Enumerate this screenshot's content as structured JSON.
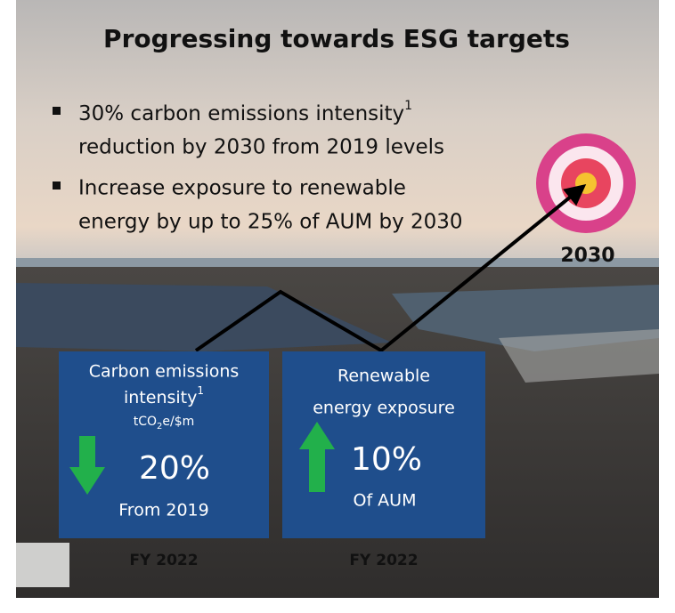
{
  "title": "Progressing towards ESG targets",
  "bullets": [
    {
      "text": "30% carbon emissions intensity",
      "sup": "1",
      "text_after": "reduction by 2030 from 2019 levels"
    },
    {
      "text": "Increase exposure to renewable",
      "text_after": "energy by up to 25% of AUM by 2030"
    }
  ],
  "target": {
    "label": "2030"
  },
  "cards": [
    {
      "title_line1": "Carbon emissions",
      "title_line2": "intensity",
      "sup": "1",
      "unit": {
        "before": "tCO",
        "sub": "2",
        "after": "e/$m"
      },
      "value": "20%",
      "caption": "From 2019",
      "period": "FY 2022"
    },
    {
      "title_line1": "Renewable",
      "title_line2": "energy exposure",
      "value": "10%",
      "caption": "Of AUM",
      "period": "FY 2022"
    }
  ]
}
